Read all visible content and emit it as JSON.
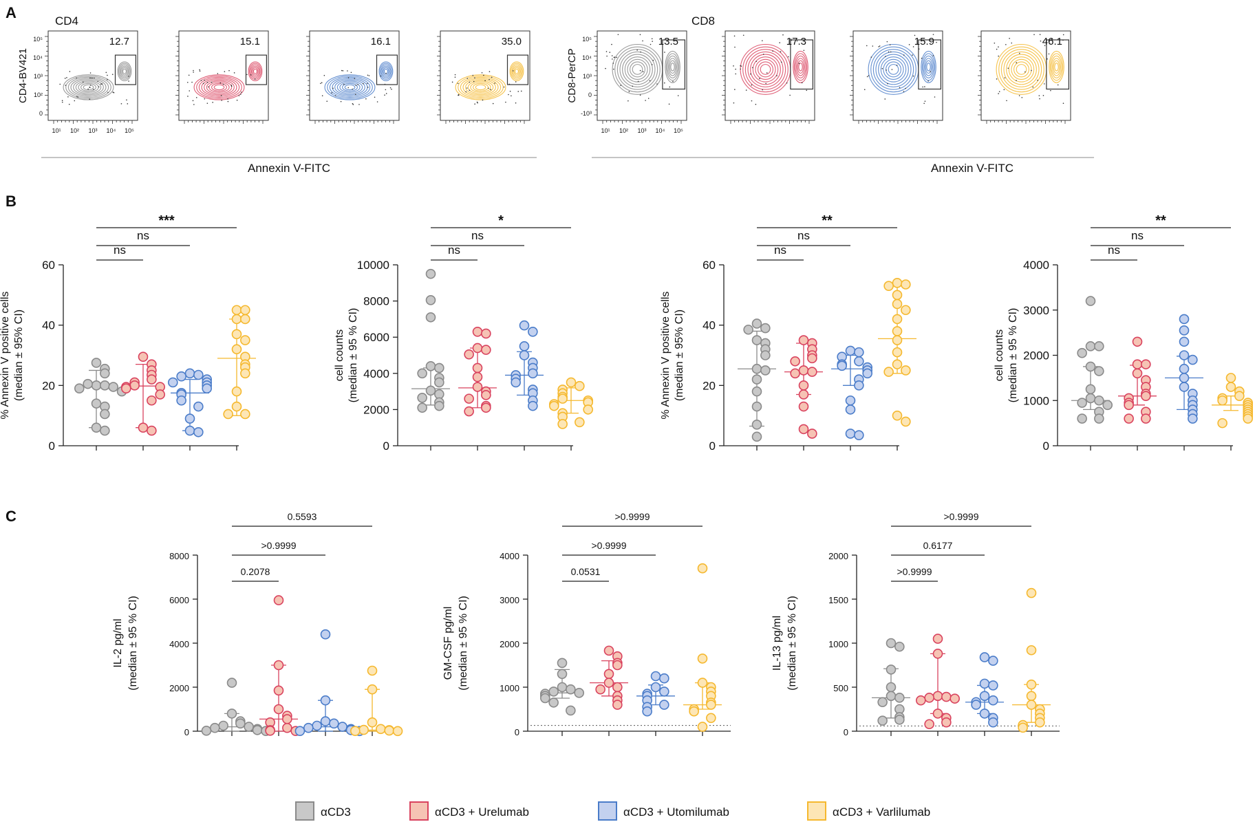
{
  "figure": {
    "panel_labels": [
      "A",
      "B",
      "C"
    ]
  },
  "groups": [
    {
      "name": "αCD3",
      "fill": "#c8c8c8",
      "stroke": "#8a8a8a"
    },
    {
      "name": "αCD3 + Urelumab",
      "fill": "#f6c3b4",
      "stroke": "#d9425e"
    },
    {
      "name": "αCD3 + Utomilumab",
      "fill": "#c3d1ef",
      "stroke": "#4a7cc9"
    },
    {
      "name": "αCD3 + Varlilumab",
      "fill": "#fde6b5",
      "stroke": "#f5b82e"
    }
  ],
  "flow": [
    {
      "title": "CD4",
      "ylabel": "CD4-BV421",
      "xlabel": "Annexin V-FITC",
      "percentages": [
        "12.7",
        "15.1",
        "16.1",
        "35.0"
      ],
      "yticks": [
        "10⁵",
        "10⁴",
        "10³",
        "10²",
        "0"
      ],
      "xticks": [
        "10¹",
        "10²",
        "10³",
        "10⁴",
        "10⁵"
      ]
    },
    {
      "title": "CD8",
      "ylabel": "CD8-PerCP",
      "xlabel": "Annexin V-FITC",
      "percentages": [
        "13.5",
        "17.3",
        "15.9",
        "46.1"
      ],
      "yticks": [
        "10⁵",
        "10⁴",
        "10³",
        "0",
        "-10³"
      ],
      "xticks": [
        "10¹",
        "10²",
        "10³",
        "10⁴",
        "10⁵"
      ]
    }
  ],
  "chart_data": [
    {
      "type": "scatter",
      "panel": "B",
      "position": 1,
      "ylabel_lines": [
        "% Annexin V positive cells",
        "(median ± 95% CI)"
      ],
      "ylim": [
        0,
        60
      ],
      "yticks": [
        0,
        20,
        40,
        60
      ],
      "series": [
        {
          "name": "αCD3",
          "median": 19.8,
          "ci": [
            6,
            25
          ],
          "values": [
            27.5,
            25.5,
            24,
            20,
            20,
            20.5,
            19.5,
            19,
            18,
            14,
            13,
            10.5,
            6,
            5
          ]
        },
        {
          "name": "αCD3 + Urelumab",
          "median": 19.8,
          "ci": [
            6,
            27
          ],
          "values": [
            29.5,
            27,
            25,
            23.5,
            22,
            21,
            20,
            19.5,
            19.5,
            19,
            17,
            15,
            6,
            5
          ]
        },
        {
          "name": "αCD3 + Utomilumab",
          "median": 17.5,
          "ci": [
            5,
            22
          ],
          "values": [
            24,
            23.5,
            23,
            22,
            21,
            21,
            20,
            19,
            17.5,
            17,
            15,
            13,
            9,
            5,
            4.5
          ]
        },
        {
          "name": "αCD3 + Varlilumab",
          "median": 29,
          "ci": [
            10,
            42
          ],
          "values": [
            45,
            45,
            42,
            42,
            37,
            35,
            32,
            29.5,
            27,
            26,
            24,
            18,
            13,
            10.5,
            10.5
          ]
        }
      ],
      "significance": [
        {
          "from": 0,
          "to": 1,
          "label": "ns"
        },
        {
          "from": 0,
          "to": 2,
          "label": "ns"
        },
        {
          "from": 0,
          "to": 3,
          "label": "***"
        }
      ]
    },
    {
      "type": "scatter",
      "panel": "B",
      "position": 2,
      "ylabel_lines": [
        "cell counts",
        "(median ± 95 % CI)"
      ],
      "ylim": [
        0,
        10000
      ],
      "yticks": [
        0,
        2000,
        4000,
        6000,
        8000,
        10000
      ],
      "series": [
        {
          "name": "αCD3",
          "median": 3150,
          "ci": [
            2250,
            4300
          ],
          "values": [
            9500,
            8050,
            7100,
            4400,
            4300,
            4000,
            3750,
            3500,
            3050,
            2850,
            2650,
            2400,
            2200,
            2100
          ]
        },
        {
          "name": "αCD3 + Urelumab",
          "median": 3200,
          "ci": [
            2100,
            5400
          ],
          "values": [
            6300,
            6200,
            5400,
            5300,
            5050,
            4300,
            3800,
            3250,
            3000,
            2800,
            2600,
            2200,
            2100,
            1900
          ]
        },
        {
          "name": "αCD3 + Utomilumab",
          "median": 3900,
          "ci": [
            2800,
            5200
          ],
          "values": [
            6650,
            6300,
            5500,
            5000,
            4600,
            4300,
            4000,
            3900,
            3700,
            3500,
            3100,
            2900,
            2500,
            2200
          ]
        },
        {
          "name": "αCD3 + Varlilumab",
          "median": 2500,
          "ci": [
            1800,
            3200
          ],
          "values": [
            3500,
            3300,
            3100,
            2900,
            2700,
            2600,
            2500,
            2400,
            2300,
            2200,
            2000,
            1800,
            1600,
            1300,
            1200
          ]
        }
      ],
      "significance": [
        {
          "from": 0,
          "to": 1,
          "label": "ns"
        },
        {
          "from": 0,
          "to": 2,
          "label": "ns"
        },
        {
          "from": 0,
          "to": 3,
          "label": "*"
        }
      ]
    },
    {
      "type": "scatter",
      "panel": "B",
      "position": 3,
      "ylabel_lines": [
        "% Annexin V positive cells",
        "(median ± 95% CI)"
      ],
      "ylim": [
        0,
        60
      ],
      "yticks": [
        0,
        20,
        40,
        60
      ],
      "series": [
        {
          "name": "αCD3",
          "median": 25.5,
          "ci": [
            6.5,
            38
          ],
          "values": [
            40.5,
            39,
            38.5,
            35,
            34,
            32,
            30,
            25.5,
            25,
            22,
            18,
            13,
            7,
            3
          ]
        },
        {
          "name": "αCD3 + Urelumab",
          "median": 24.5,
          "ci": [
            17,
            34
          ],
          "values": [
            35,
            34,
            32,
            30,
            29,
            28,
            25,
            24.5,
            24,
            20,
            17,
            13,
            5.5,
            4
          ]
        },
        {
          "name": "αCD3 + Utomilumab",
          "median": 25.5,
          "ci": [
            20,
            30
          ],
          "values": [
            31.5,
            31,
            29.5,
            28,
            27,
            26.5,
            26,
            25,
            24,
            22,
            20,
            15,
            12,
            4,
            3.5
          ]
        },
        {
          "name": "αCD3 + Varlilumab",
          "median": 35.5,
          "ci": [
            24,
            53
          ],
          "values": [
            54,
            53.5,
            53,
            50,
            47,
            45,
            42,
            38,
            35,
            31,
            27,
            25,
            24.5,
            10,
            8
          ]
        }
      ],
      "significance": [
        {
          "from": 0,
          "to": 1,
          "label": "ns"
        },
        {
          "from": 0,
          "to": 2,
          "label": "ns"
        },
        {
          "from": 0,
          "to": 3,
          "label": "**"
        }
      ]
    },
    {
      "type": "scatter",
      "panel": "B",
      "position": 4,
      "ylabel_lines": [
        "cell counts",
        "(median ± 95 % CI)"
      ],
      "ylim": [
        0,
        4000
      ],
      "yticks": [
        0,
        1000,
        2000,
        3000,
        4000
      ],
      "series": [
        {
          "name": "αCD3",
          "median": 1000,
          "ci": [
            800,
            1750
          ],
          "values": [
            3200,
            2200,
            2200,
            2050,
            1750,
            1650,
            1250,
            1050,
            1000,
            950,
            900,
            750,
            600,
            600
          ]
        },
        {
          "name": "αCD3 + Urelumab",
          "median": 1100,
          "ci": [
            900,
            1780
          ],
          "values": [
            2300,
            1800,
            1800,
            1600,
            1450,
            1300,
            1150,
            1100,
            1050,
            950,
            900,
            750,
            600,
            600
          ]
        },
        {
          "name": "αCD3 + Utomilumab",
          "median": 1500,
          "ci": [
            800,
            1980
          ],
          "values": [
            2800,
            2550,
            2300,
            2000,
            1900,
            1700,
            1500,
            1300,
            1150,
            1000,
            900,
            800,
            700,
            600
          ]
        },
        {
          "name": "αCD3 + Varlilumab",
          "median": 900,
          "ci": [
            780,
            1100
          ],
          "values": [
            1500,
            1300,
            1200,
            1100,
            1050,
            1000,
            950,
            900,
            850,
            800,
            750,
            700,
            650,
            600,
            500
          ]
        }
      ],
      "significance": [
        {
          "from": 0,
          "to": 1,
          "label": "ns"
        },
        {
          "from": 0,
          "to": 2,
          "label": "ns"
        },
        {
          "from": 0,
          "to": 3,
          "label": "**"
        }
      ]
    },
    {
      "type": "scatter",
      "panel": "C",
      "position": 1,
      "ylabel_lines": [
        "IL-2 pg/ml",
        "(median ± 95 % CI)"
      ],
      "ylim": [
        0,
        8000
      ],
      "yticks": [
        0,
        2000,
        4000,
        6000,
        8000
      ],
      "baseline": null,
      "series": [
        {
          "name": "αCD3",
          "median": 200,
          "ci": [
            0,
            800
          ],
          "values": [
            2200,
            800,
            450,
            350,
            250,
            200,
            150,
            100,
            50,
            20,
            10
          ]
        },
        {
          "name": "αCD3 + Urelumab",
          "median": 550,
          "ci": [
            0,
            3000
          ],
          "values": [
            5950,
            3000,
            1850,
            1000,
            700,
            550,
            400,
            150,
            50,
            20,
            10
          ]
        },
        {
          "name": "αCD3 + Utomilumab",
          "median": 200,
          "ci": [
            0,
            1400
          ],
          "values": [
            4400,
            1400,
            450,
            350,
            250,
            200,
            150,
            100,
            50,
            10,
            5
          ]
        },
        {
          "name": "αCD3 + Varlilumab",
          "median": 50,
          "ci": [
            0,
            1900
          ],
          "values": [
            2750,
            1900,
            400,
            100,
            60,
            50,
            30,
            10,
            5
          ]
        }
      ],
      "significance": [
        {
          "from": 0,
          "to": 1,
          "label": "0.2078"
        },
        {
          "from": 0,
          "to": 2,
          "label": ">0.9999"
        },
        {
          "from": 0,
          "to": 3,
          "label": "0.5593"
        }
      ]
    },
    {
      "type": "scatter",
      "panel": "C",
      "position": 2,
      "ylabel_lines": [
        "GM-CSF pg/ml",
        "(median ± 95 % CI)"
      ],
      "ylim": [
        0,
        4000
      ],
      "yticks": [
        0,
        1000,
        2000,
        3000,
        4000
      ],
      "baseline": 130,
      "series": [
        {
          "name": "αCD3",
          "median": 870,
          "ci": [
            750,
            1400
          ],
          "values": [
            1550,
            1300,
            1000,
            950,
            900,
            870,
            850,
            800,
            750,
            650,
            470
          ]
        },
        {
          "name": "αCD3 + Urelumab",
          "median": 1100,
          "ci": [
            800,
            1600
          ],
          "values": [
            1830,
            1700,
            1550,
            1500,
            1300,
            1100,
            1000,
            950,
            800,
            700,
            600
          ]
        },
        {
          "name": "αCD3 + Utomilumab",
          "median": 800,
          "ci": [
            600,
            1050
          ],
          "values": [
            1250,
            1200,
            1000,
            900,
            850,
            800,
            700,
            600,
            550,
            450
          ]
        },
        {
          "name": "αCD3 + Varlilumab",
          "median": 600,
          "ci": [
            500,
            1100
          ],
          "values": [
            3700,
            1650,
            1100,
            1000,
            900,
            800,
            650,
            600,
            500,
            450,
            300,
            100
          ]
        }
      ],
      "significance": [
        {
          "from": 0,
          "to": 1,
          "label": "0.0531"
        },
        {
          "from": 0,
          "to": 2,
          "label": ">0.9999"
        },
        {
          "from": 0,
          "to": 3,
          "label": ">0.9999"
        }
      ]
    },
    {
      "type": "scatter",
      "panel": "C",
      "position": 3,
      "ylabel_lines": [
        "IL-13 pg/ml",
        "(median ± 95 % CI)"
      ],
      "ylim": [
        0,
        2000
      ],
      "yticks": [
        0,
        500,
        1000,
        1500,
        2000
      ],
      "baseline": 60,
      "series": [
        {
          "name": "αCD3",
          "median": 380,
          "ci": [
            150,
            710
          ],
          "values": [
            1000,
            960,
            700,
            500,
            400,
            380,
            330,
            250,
            160,
            130,
            120
          ]
        },
        {
          "name": "αCD3 + Urelumab",
          "median": 380,
          "ci": [
            200,
            880
          ],
          "values": [
            1050,
            880,
            400,
            390,
            380,
            370,
            350,
            200,
            150,
            100,
            80
          ]
        },
        {
          "name": "αCD3 + Utomilumab",
          "median": 330,
          "ci": [
            200,
            520
          ],
          "values": [
            840,
            800,
            540,
            520,
            400,
            350,
            330,
            300,
            200,
            150,
            100
          ]
        },
        {
          "name": "αCD3 + Varlilumab",
          "median": 300,
          "ci": [
            100,
            530
          ],
          "values": [
            1570,
            920,
            530,
            400,
            300,
            250,
            200,
            150,
            100,
            70,
            40
          ]
        }
      ],
      "significance": [
        {
          "from": 0,
          "to": 1,
          "label": ">0.9999"
        },
        {
          "from": 0,
          "to": 2,
          "label": "0.6177"
        },
        {
          "from": 0,
          "to": 3,
          "label": ">0.9999"
        }
      ]
    }
  ]
}
